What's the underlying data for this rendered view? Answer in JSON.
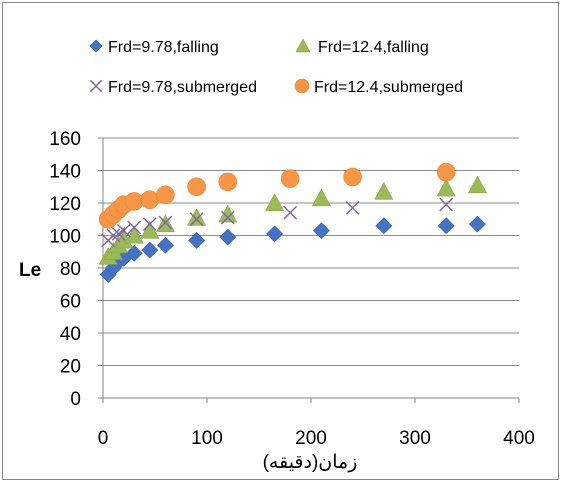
{
  "chart_data": {
    "type": "scatter",
    "xlabel": "زمان(دقیقه)",
    "ylabel": "Le",
    "xlim": [
      0,
      400
    ],
    "ylim": [
      0,
      160
    ],
    "x_ticks": [
      "0",
      "100",
      "200",
      "300",
      "400"
    ],
    "y_ticks": [
      "0",
      "20",
      "40",
      "60",
      "80",
      "100",
      "120",
      "140",
      "160"
    ],
    "grid": "horizontal",
    "legend_position": "top",
    "series": [
      {
        "name": "Frd=9.78,falling",
        "marker": "diamond",
        "color": "#4472C4",
        "points": [
          [
            5,
            76
          ],
          [
            10,
            80
          ],
          [
            15,
            84
          ],
          [
            20,
            86
          ],
          [
            30,
            89
          ],
          [
            45,
            91
          ],
          [
            60,
            94
          ],
          [
            90,
            97
          ],
          [
            120,
            99
          ],
          [
            165,
            101
          ],
          [
            210,
            103
          ],
          [
            270,
            106
          ],
          [
            330,
            106
          ],
          [
            360,
            107
          ]
        ]
      },
      {
        "name": "Frd=12.4,falling",
        "marker": "triangle",
        "color": "#9BBB59",
        "points": [
          [
            5,
            87
          ],
          [
            10,
            90
          ],
          [
            15,
            94
          ],
          [
            20,
            97
          ],
          [
            30,
            100
          ],
          [
            45,
            103
          ],
          [
            60,
            107
          ],
          [
            90,
            111
          ],
          [
            120,
            113
          ],
          [
            165,
            120
          ],
          [
            210,
            123
          ],
          [
            270,
            127
          ],
          [
            330,
            129
          ],
          [
            360,
            131
          ]
        ]
      },
      {
        "name": "Frd=9.78,submerged",
        "marker": "x",
        "color": "#8064A2",
        "points": [
          [
            5,
            97
          ],
          [
            10,
            100
          ],
          [
            15,
            101
          ],
          [
            20,
            103
          ],
          [
            30,
            105
          ],
          [
            45,
            107
          ],
          [
            60,
            108
          ],
          [
            90,
            110
          ],
          [
            120,
            111
          ],
          [
            180,
            114
          ],
          [
            240,
            117
          ],
          [
            330,
            119
          ]
        ]
      },
      {
        "name": "Frd=12.4,submerged",
        "marker": "circle",
        "color": "#F79646",
        "points": [
          [
            5,
            110
          ],
          [
            10,
            113
          ],
          [
            15,
            116
          ],
          [
            20,
            119
          ],
          [
            30,
            121
          ],
          [
            45,
            122
          ],
          [
            60,
            125
          ],
          [
            90,
            130
          ],
          [
            120,
            133
          ],
          [
            180,
            135
          ],
          [
            240,
            136
          ],
          [
            330,
            139
          ]
        ]
      }
    ]
  }
}
